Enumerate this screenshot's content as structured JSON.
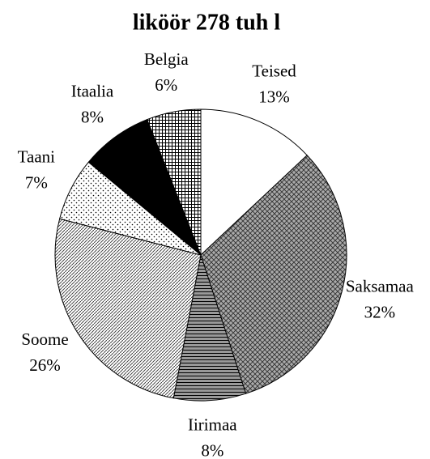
{
  "chart_data": {
    "type": "pie",
    "title": "liköör 278 tuh l",
    "categories": [
      "Teised",
      "Saksamaa",
      "Iirimaa",
      "Soome",
      "Taani",
      "Itaalia",
      "Belgia"
    ],
    "values": [
      13,
      32,
      8,
      26,
      7,
      8,
      6
    ],
    "value_labels": [
      "13%",
      "32%",
      "8%",
      "26%",
      "7%",
      "8%",
      "6%"
    ],
    "fills": [
      "white",
      "diamond",
      "horizontal",
      "diagonal",
      "dots",
      "solid",
      "grid"
    ]
  }
}
